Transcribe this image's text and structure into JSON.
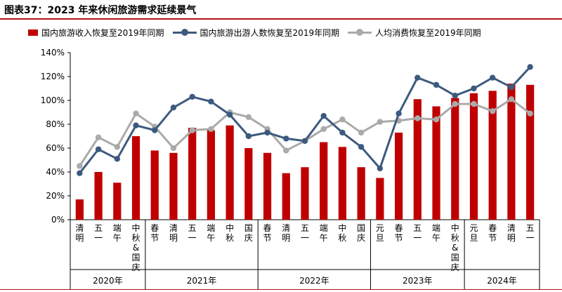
{
  "title": "图表37：2023 年来休闲旅游需求延续景气",
  "colors": {
    "bar": "#c00000",
    "line1": "#3d5a7e",
    "line2": "#aaaaaa",
    "rule": "#b0121b"
  },
  "chart_data": {
    "type": "bar",
    "title": "图表37：2023 年来休闲旅游需求延续景气",
    "ylim": [
      0,
      140
    ],
    "yticks": [
      0,
      20,
      40,
      60,
      80,
      100,
      120,
      140
    ],
    "ytick_labels": [
      "0%",
      "20%",
      "40%",
      "60%",
      "80%",
      "100%",
      "120%",
      "140%"
    ],
    "grid": false,
    "legend": "top",
    "categories": [
      "清明",
      "五一",
      "端午",
      "中秋&国庆",
      "春节",
      "清明",
      "五一",
      "端午",
      "中秋",
      "国庆",
      "春节",
      "清明",
      "五一",
      "端午",
      "中秋",
      "国庆",
      "元旦",
      "春节",
      "五一",
      "端午",
      "中秋&国庆",
      "元旦",
      "春节",
      "清明",
      "五一"
    ],
    "groups": [
      {
        "label": "2020年",
        "count": 4
      },
      {
        "label": "2021年",
        "count": 6
      },
      {
        "label": "2022年",
        "count": 6
      },
      {
        "label": "2023年",
        "count": 5
      },
      {
        "label": "2024年",
        "count": 4
      }
    ],
    "series": [
      {
        "name": "国内旅游收入恢复至2019年同期",
        "type": "bar",
        "values": [
          17,
          40,
          31,
          70,
          58,
          56,
          77,
          75,
          79,
          60,
          56,
          39,
          44,
          65,
          61,
          44,
          35,
          73,
          101,
          95,
          102,
          106,
          108,
          114,
          113
        ]
      },
      {
        "name": "国内旅游出游人数恢复至2019年同期",
        "type": "line",
        "values": [
          39,
          59,
          51,
          79,
          75,
          94,
          103,
          99,
          88,
          70,
          73,
          68,
          66,
          87,
          73,
          61,
          43,
          89,
          119,
          113,
          104,
          110,
          119,
          111,
          128
        ]
      },
      {
        "name": "人均消费恢复至2019年同期",
        "type": "line",
        "values": [
          45,
          69,
          61,
          89,
          78,
          60,
          75,
          76,
          90,
          86,
          76,
          58,
          66,
          76,
          84,
          73,
          82,
          83,
          85,
          84,
          97,
          97,
          91,
          101,
          89
        ]
      }
    ]
  }
}
